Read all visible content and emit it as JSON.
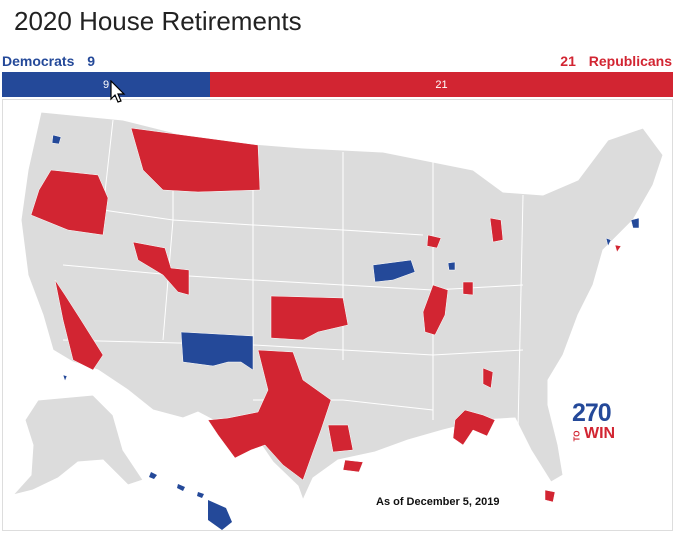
{
  "title": "2020 House Retirements",
  "tally": {
    "dem_label": "Democrats",
    "dem_count": "9",
    "rep_label": "Republicans",
    "rep_count": "21"
  },
  "bar": {
    "dem_value": "9",
    "rep_value": "21"
  },
  "colors": {
    "democrat": "#244999",
    "republican": "#d22532",
    "neutral": "#dcdcdc",
    "border": "#ffffff"
  },
  "as_of": "As of December 5, 2019",
  "logo": {
    "number": "270",
    "to": "TO",
    "win": "WIN"
  }
}
